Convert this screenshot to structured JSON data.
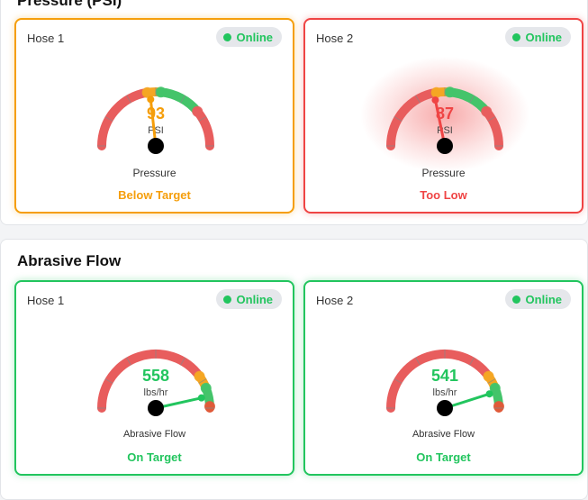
{
  "sections": [
    {
      "title": "Pressure (PSI)",
      "cards": [
        {
          "hose": "Hose 1",
          "status_badge": "Online",
          "value": "93",
          "unit": "PSI",
          "label": "Pressure",
          "status": "Below Target",
          "status_color": "#f59e0b",
          "border": "orange",
          "glow": false,
          "gauge": {
            "min": 0,
            "max": 200,
            "value": 93,
            "segments": [
              {
                "to": 0.45,
                "color": "#e85d5d"
              },
              {
                "to": 0.53,
                "color": "#f5a623"
              },
              {
                "to": 0.78,
                "color": "#44c46a"
              },
              {
                "to": 1,
                "color": "#e85d5d"
              }
            ],
            "needle_color": "#f59e0b"
          }
        },
        {
          "hose": "Hose 2",
          "status_badge": "Online",
          "value": "87",
          "unit": "PSI",
          "label": "Pressure",
          "status": "Too Low",
          "status_color": "#ef4444",
          "border": "red",
          "glow": true,
          "gauge": {
            "min": 0,
            "max": 200,
            "value": 87,
            "segments": [
              {
                "to": 0.45,
                "color": "#e85d5d"
              },
              {
                "to": 0.53,
                "color": "#f5a623"
              },
              {
                "to": 0.78,
                "color": "#44c46a"
              },
              {
                "to": 1,
                "color": "#e85d5d"
              }
            ],
            "needle_color": "#ef4444"
          }
        }
      ]
    },
    {
      "title": "Abrasive Flow",
      "cards": [
        {
          "hose": "Hose 1",
          "status_badge": "Online",
          "value": "558",
          "unit": "lbs/hr",
          "label": "Abrasive Flow",
          "status": "On Target",
          "status_color": "#22c55e",
          "border": "green",
          "glow": false,
          "gauge": {
            "min": 0,
            "max": 600,
            "value": 558,
            "segments": [
              {
                "to": 0.8,
                "color": "#e85d5d"
              },
              {
                "to": 0.88,
                "color": "#f5a623"
              },
              {
                "to": 0.99,
                "color": "#44c46a"
              },
              {
                "to": 1,
                "color": "#e05a3a"
              }
            ],
            "needle_color": "#22c55e"
          }
        },
        {
          "hose": "Hose 2",
          "status_badge": "Online",
          "value": "541",
          "unit": "lbs/hr",
          "label": "Abrasive Flow",
          "status": "On Target",
          "status_color": "#22c55e",
          "border": "green",
          "glow": false,
          "gauge": {
            "min": 0,
            "max": 600,
            "value": 541,
            "segments": [
              {
                "to": 0.8,
                "color": "#e85d5d"
              },
              {
                "to": 0.88,
                "color": "#f5a623"
              },
              {
                "to": 0.99,
                "color": "#44c46a"
              },
              {
                "to": 1,
                "color": "#e05a3a"
              }
            ],
            "needle_color": "#22c55e"
          }
        }
      ]
    }
  ]
}
